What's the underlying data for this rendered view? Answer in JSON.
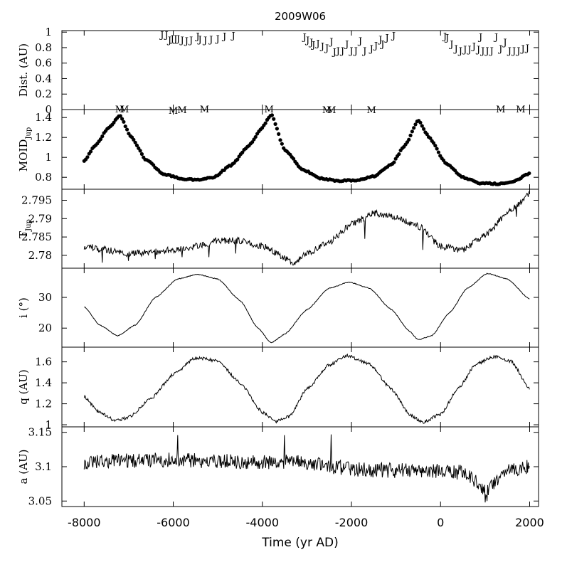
{
  "chart_data": {
    "type": "line",
    "title": "2009W06",
    "xlabel": "Time (yr AD)",
    "xlim": [
      -8500,
      2200
    ],
    "xticks": [
      -8000,
      -6000,
      -4000,
      -2000,
      0,
      2000
    ],
    "panels": [
      {
        "id": "dist",
        "ylabel_main": "Dist. (AU)",
        "ylabel_sub": "",
        "type": "markers",
        "ylim": [
          0,
          1.02
        ],
        "yticks": [
          0,
          0.2,
          0.4,
          0.6,
          0.8,
          1
        ],
        "series": [
          {
            "name": "J",
            "marker": "J",
            "points": [
              [
                -6250,
                0.98
              ],
              [
                -6150,
                0.98
              ],
              [
                -6080,
                0.91
              ],
              [
                -6020,
                0.93
              ],
              [
                -5950,
                0.93
              ],
              [
                -5890,
                0.93
              ],
              [
                -5800,
                0.91
              ],
              [
                -5700,
                0.9
              ],
              [
                -5600,
                0.91
              ],
              [
                -5450,
                0.96
              ],
              [
                -5400,
                0.92
              ],
              [
                -5280,
                0.91
              ],
              [
                -5150,
                0.92
              ],
              [
                -5000,
                0.93
              ],
              [
                -4850,
                0.96
              ],
              [
                -4650,
                0.97
              ],
              [
                -3050,
                0.95
              ],
              [
                -2980,
                0.91
              ],
              [
                -2900,
                0.88
              ],
              [
                -2850,
                0.85
              ],
              [
                -2750,
                0.87
              ],
              [
                -2650,
                0.83
              ],
              [
                -2550,
                0.81
              ],
              [
                -2450,
                0.89
              ],
              [
                -2380,
                0.76
              ],
              [
                -2300,
                0.77
              ],
              [
                -2200,
                0.77
              ],
              [
                -2100,
                0.86
              ],
              [
                -2000,
                0.77
              ],
              [
                -1900,
                0.77
              ],
              [
                -1800,
                0.9
              ],
              [
                -1700,
                0.77
              ],
              [
                -1550,
                0.8
              ],
              [
                -1450,
                0.84
              ],
              [
                -1350,
                0.92
              ],
              [
                -1300,
                0.86
              ],
              [
                -1200,
                0.94
              ],
              [
                -1050,
                0.97
              ],
              [
                100,
                0.96
              ],
              [
                150,
                0.94
              ],
              [
                250,
                0.86
              ],
              [
                350,
                0.8
              ],
              [
                450,
                0.77
              ],
              [
                550,
                0.79
              ],
              [
                650,
                0.79
              ],
              [
                750,
                0.83
              ],
              [
                850,
                0.79
              ],
              [
                900,
                0.95
              ],
              [
                950,
                0.77
              ],
              [
                1050,
                0.77
              ],
              [
                1150,
                0.77
              ],
              [
                1250,
                0.95
              ],
              [
                1350,
                0.8
              ],
              [
                1450,
                0.88
              ],
              [
                1550,
                0.77
              ],
              [
                1650,
                0.77
              ],
              [
                1750,
                0.77
              ],
              [
                1850,
                0.8
              ],
              [
                1950,
                0.81
              ]
            ]
          },
          {
            "name": "M",
            "marker": "M",
            "points": [
              [
                -7200,
                0.02
              ],
              [
                -7100,
                0.02
              ],
              [
                -6000,
                0.0
              ],
              [
                -5800,
                0.01
              ],
              [
                -5300,
                0.02
              ],
              [
                -3850,
                0.02
              ],
              [
                -2550,
                0.01
              ],
              [
                -2450,
                0.01
              ],
              [
                -1550,
                0.01
              ],
              [
                1350,
                0.02
              ],
              [
                1800,
                0.02
              ]
            ]
          }
        ]
      },
      {
        "id": "moid",
        "ylabel_main": "MOID",
        "ylabel_sub": "Jup",
        "type": "dots",
        "ylim": [
          0.68,
          1.48
        ],
        "yticks": [
          0.8,
          1,
          1.2,
          1.4
        ],
        "knots": [
          [
            -8000,
            0.97
          ],
          [
            -7750,
            1.12
          ],
          [
            -7450,
            1.3
          ],
          [
            -7200,
            1.42
          ],
          [
            -6950,
            1.21
          ],
          [
            -6600,
            0.97
          ],
          [
            -6200,
            0.83
          ],
          [
            -5800,
            0.785
          ],
          [
            -5500,
            0.775
          ],
          [
            -5100,
            0.8
          ],
          [
            -4700,
            0.92
          ],
          [
            -4300,
            1.12
          ],
          [
            -4000,
            1.3
          ],
          [
            -3800,
            1.43
          ],
          [
            -3500,
            1.08
          ],
          [
            -3100,
            0.88
          ],
          [
            -2700,
            0.79
          ],
          [
            -2300,
            0.765
          ],
          [
            -1900,
            0.77
          ],
          [
            -1500,
            0.81
          ],
          [
            -1100,
            0.93
          ],
          [
            -800,
            1.12
          ],
          [
            -500,
            1.37
          ],
          [
            -250,
            1.2
          ],
          [
            100,
            0.95
          ],
          [
            500,
            0.8
          ],
          [
            900,
            0.74
          ],
          [
            1300,
            0.735
          ],
          [
            1600,
            0.75
          ],
          [
            2000,
            0.84
          ]
        ],
        "step": 37
      },
      {
        "id": "tjup",
        "ylabel_main": "T",
        "ylabel_sub": "Jup",
        "type": "noisy-line",
        "ylim": [
          2.7765,
          2.798
        ],
        "yticks": [
          2.78,
          2.785,
          2.79,
          2.795
        ],
        "knots": [
          [
            -8000,
            2.7825
          ],
          [
            -7500,
            2.7815
          ],
          [
            -7000,
            2.7805
          ],
          [
            -6500,
            2.7808
          ],
          [
            -6000,
            2.7815
          ],
          [
            -5500,
            2.7825
          ],
          [
            -5000,
            2.784
          ],
          [
            -4500,
            2.784
          ],
          [
            -4000,
            2.7825
          ],
          [
            -3500,
            2.7795
          ],
          [
            -3300,
            2.778
          ],
          [
            -3000,
            2.7805
          ],
          [
            -2500,
            2.7835
          ],
          [
            -2000,
            2.7885
          ],
          [
            -1500,
            2.7915
          ],
          [
            -1000,
            2.7905
          ],
          [
            -500,
            2.788
          ],
          [
            0,
            2.7825
          ],
          [
            500,
            2.7815
          ],
          [
            1000,
            2.7855
          ],
          [
            1500,
            2.7915
          ],
          [
            2000,
            2.7965
          ]
        ],
        "noise": 0.0009,
        "spikes": [
          [
            -7600,
            2.778
          ],
          [
            -7000,
            2.7785
          ],
          [
            -6400,
            2.779
          ],
          [
            -5800,
            2.7795
          ],
          [
            -5200,
            2.7795
          ],
          [
            -4600,
            2.7805
          ],
          [
            -3300,
            2.7775
          ],
          [
            -1700,
            2.7845
          ],
          [
            -400,
            2.7815
          ],
          [
            1700,
            2.7905
          ]
        ]
      },
      {
        "id": "incl",
        "ylabel_main": "i (°)",
        "ylabel_sub": "",
        "type": "smooth-line",
        "ylim": [
          13.8,
          39.5
        ],
        "yticks": [
          20,
          30
        ],
        "knots": [
          [
            -8000,
            27
          ],
          [
            -7650,
            21
          ],
          [
            -7250,
            17.5
          ],
          [
            -6850,
            21
          ],
          [
            -6400,
            30
          ],
          [
            -5900,
            36
          ],
          [
            -5450,
            37.5
          ],
          [
            -5000,
            36
          ],
          [
            -4500,
            29
          ],
          [
            -4100,
            20
          ],
          [
            -3800,
            15.2
          ],
          [
            -3500,
            18
          ],
          [
            -3000,
            26
          ],
          [
            -2500,
            33
          ],
          [
            -2050,
            35
          ],
          [
            -1600,
            33
          ],
          [
            -1100,
            26
          ],
          [
            -700,
            19
          ],
          [
            -500,
            16.2
          ],
          [
            -200,
            17.5
          ],
          [
            200,
            25
          ],
          [
            600,
            33
          ],
          [
            1050,
            37.8
          ],
          [
            1500,
            36
          ],
          [
            2000,
            29.5
          ]
        ],
        "noise": 0.12
      },
      {
        "id": "q",
        "ylabel_main": "q (AU)",
        "ylabel_sub": "",
        "type": "noisy-line",
        "ylim": [
          0.98,
          1.74
        ],
        "yticks": [
          1,
          1.2,
          1.4,
          1.6
        ],
        "knots": [
          [
            -8000,
            1.27
          ],
          [
            -7700,
            1.13
          ],
          [
            -7300,
            1.04
          ],
          [
            -7000,
            1.07
          ],
          [
            -6500,
            1.25
          ],
          [
            -6000,
            1.48
          ],
          [
            -5500,
            1.64
          ],
          [
            -5000,
            1.61
          ],
          [
            -4500,
            1.4
          ],
          [
            -4000,
            1.12
          ],
          [
            -3700,
            1.03
          ],
          [
            -3400,
            1.08
          ],
          [
            -3000,
            1.34
          ],
          [
            -2500,
            1.57
          ],
          [
            -2100,
            1.66
          ],
          [
            -1600,
            1.58
          ],
          [
            -1100,
            1.34
          ],
          [
            -700,
            1.1
          ],
          [
            -400,
            1.02
          ],
          [
            0,
            1.1
          ],
          [
            400,
            1.35
          ],
          [
            800,
            1.58
          ],
          [
            1200,
            1.65
          ],
          [
            1600,
            1.6
          ],
          [
            2000,
            1.34
          ]
        ],
        "noise": 0.015,
        "spikes": []
      },
      {
        "id": "a",
        "ylabel_main": "a (AU)",
        "ylabel_sub": "",
        "type": "noisy-line",
        "ylim": [
          3.042,
          3.158
        ],
        "yticks": [
          3.05,
          3.1,
          3.15
        ],
        "knots": [
          [
            -8000,
            3.107
          ],
          [
            -6000,
            3.11
          ],
          [
            -4000,
            3.106
          ],
          [
            -3000,
            3.107
          ],
          [
            -2500,
            3.1
          ],
          [
            -1500,
            3.095
          ],
          [
            0,
            3.093
          ],
          [
            500,
            3.092
          ],
          [
            700,
            3.085
          ],
          [
            900,
            3.067
          ],
          [
            1050,
            3.062
          ],
          [
            1200,
            3.075
          ],
          [
            1400,
            3.095
          ],
          [
            2000,
            3.1
          ]
        ],
        "noise": 0.011,
        "spikes": [
          [
            -5900,
            3.146
          ],
          [
            -3500,
            3.146
          ],
          [
            -2450,
            3.147
          ],
          [
            1000,
            3.048
          ],
          [
            1050,
            3.05
          ]
        ]
      }
    ]
  }
}
